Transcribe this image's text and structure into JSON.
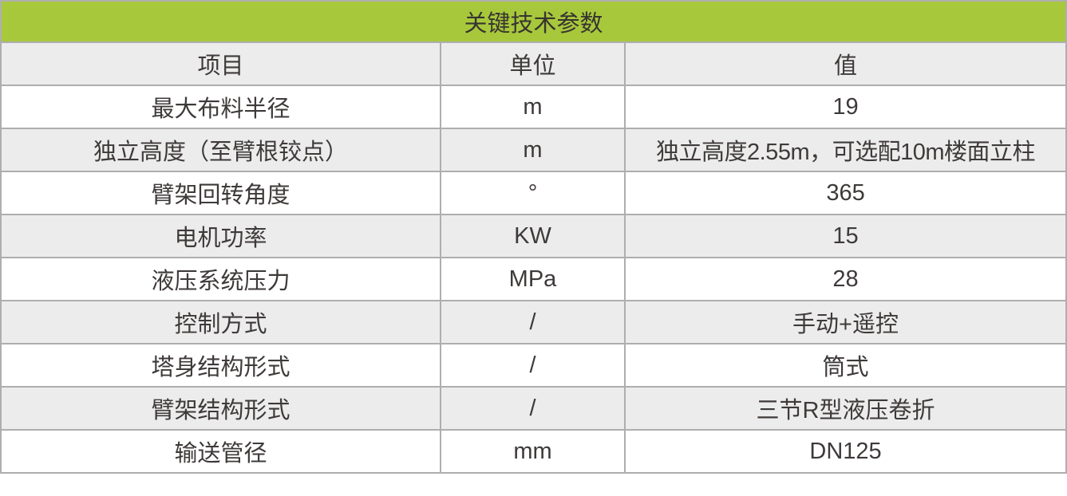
{
  "colors": {
    "banner_green": "#a8c83c",
    "alt_row_gray": "#ececec",
    "border_gray": "#aeaeae",
    "text_dark": "#3e3a39"
  },
  "table": {
    "title": "关键技术参数",
    "columns": {
      "item": "项目",
      "unit": "单位",
      "value": "值"
    },
    "rows": [
      {
        "item": "最大布料半径",
        "unit": "m",
        "value": "19"
      },
      {
        "item": "独立高度（至臂根铰点）",
        "unit": "m",
        "value": "独立高度2.55m，可选配10m楼面立柱"
      },
      {
        "item": "臂架回转角度",
        "unit": "°",
        "value": "365"
      },
      {
        "item": "电机功率",
        "unit": "KW",
        "value": "15"
      },
      {
        "item": "液压系统压力",
        "unit": "MPa",
        "value": "28"
      },
      {
        "item": "控制方式",
        "unit": "/",
        "value": "手动+遥控"
      },
      {
        "item": "塔身结构形式",
        "unit": "/",
        "value": "筒式"
      },
      {
        "item": "臂架结构形式",
        "unit": "/",
        "value": "三节R型液压卷折"
      },
      {
        "item": "输送管径",
        "unit": "mm",
        "value": "DN125"
      }
    ]
  }
}
